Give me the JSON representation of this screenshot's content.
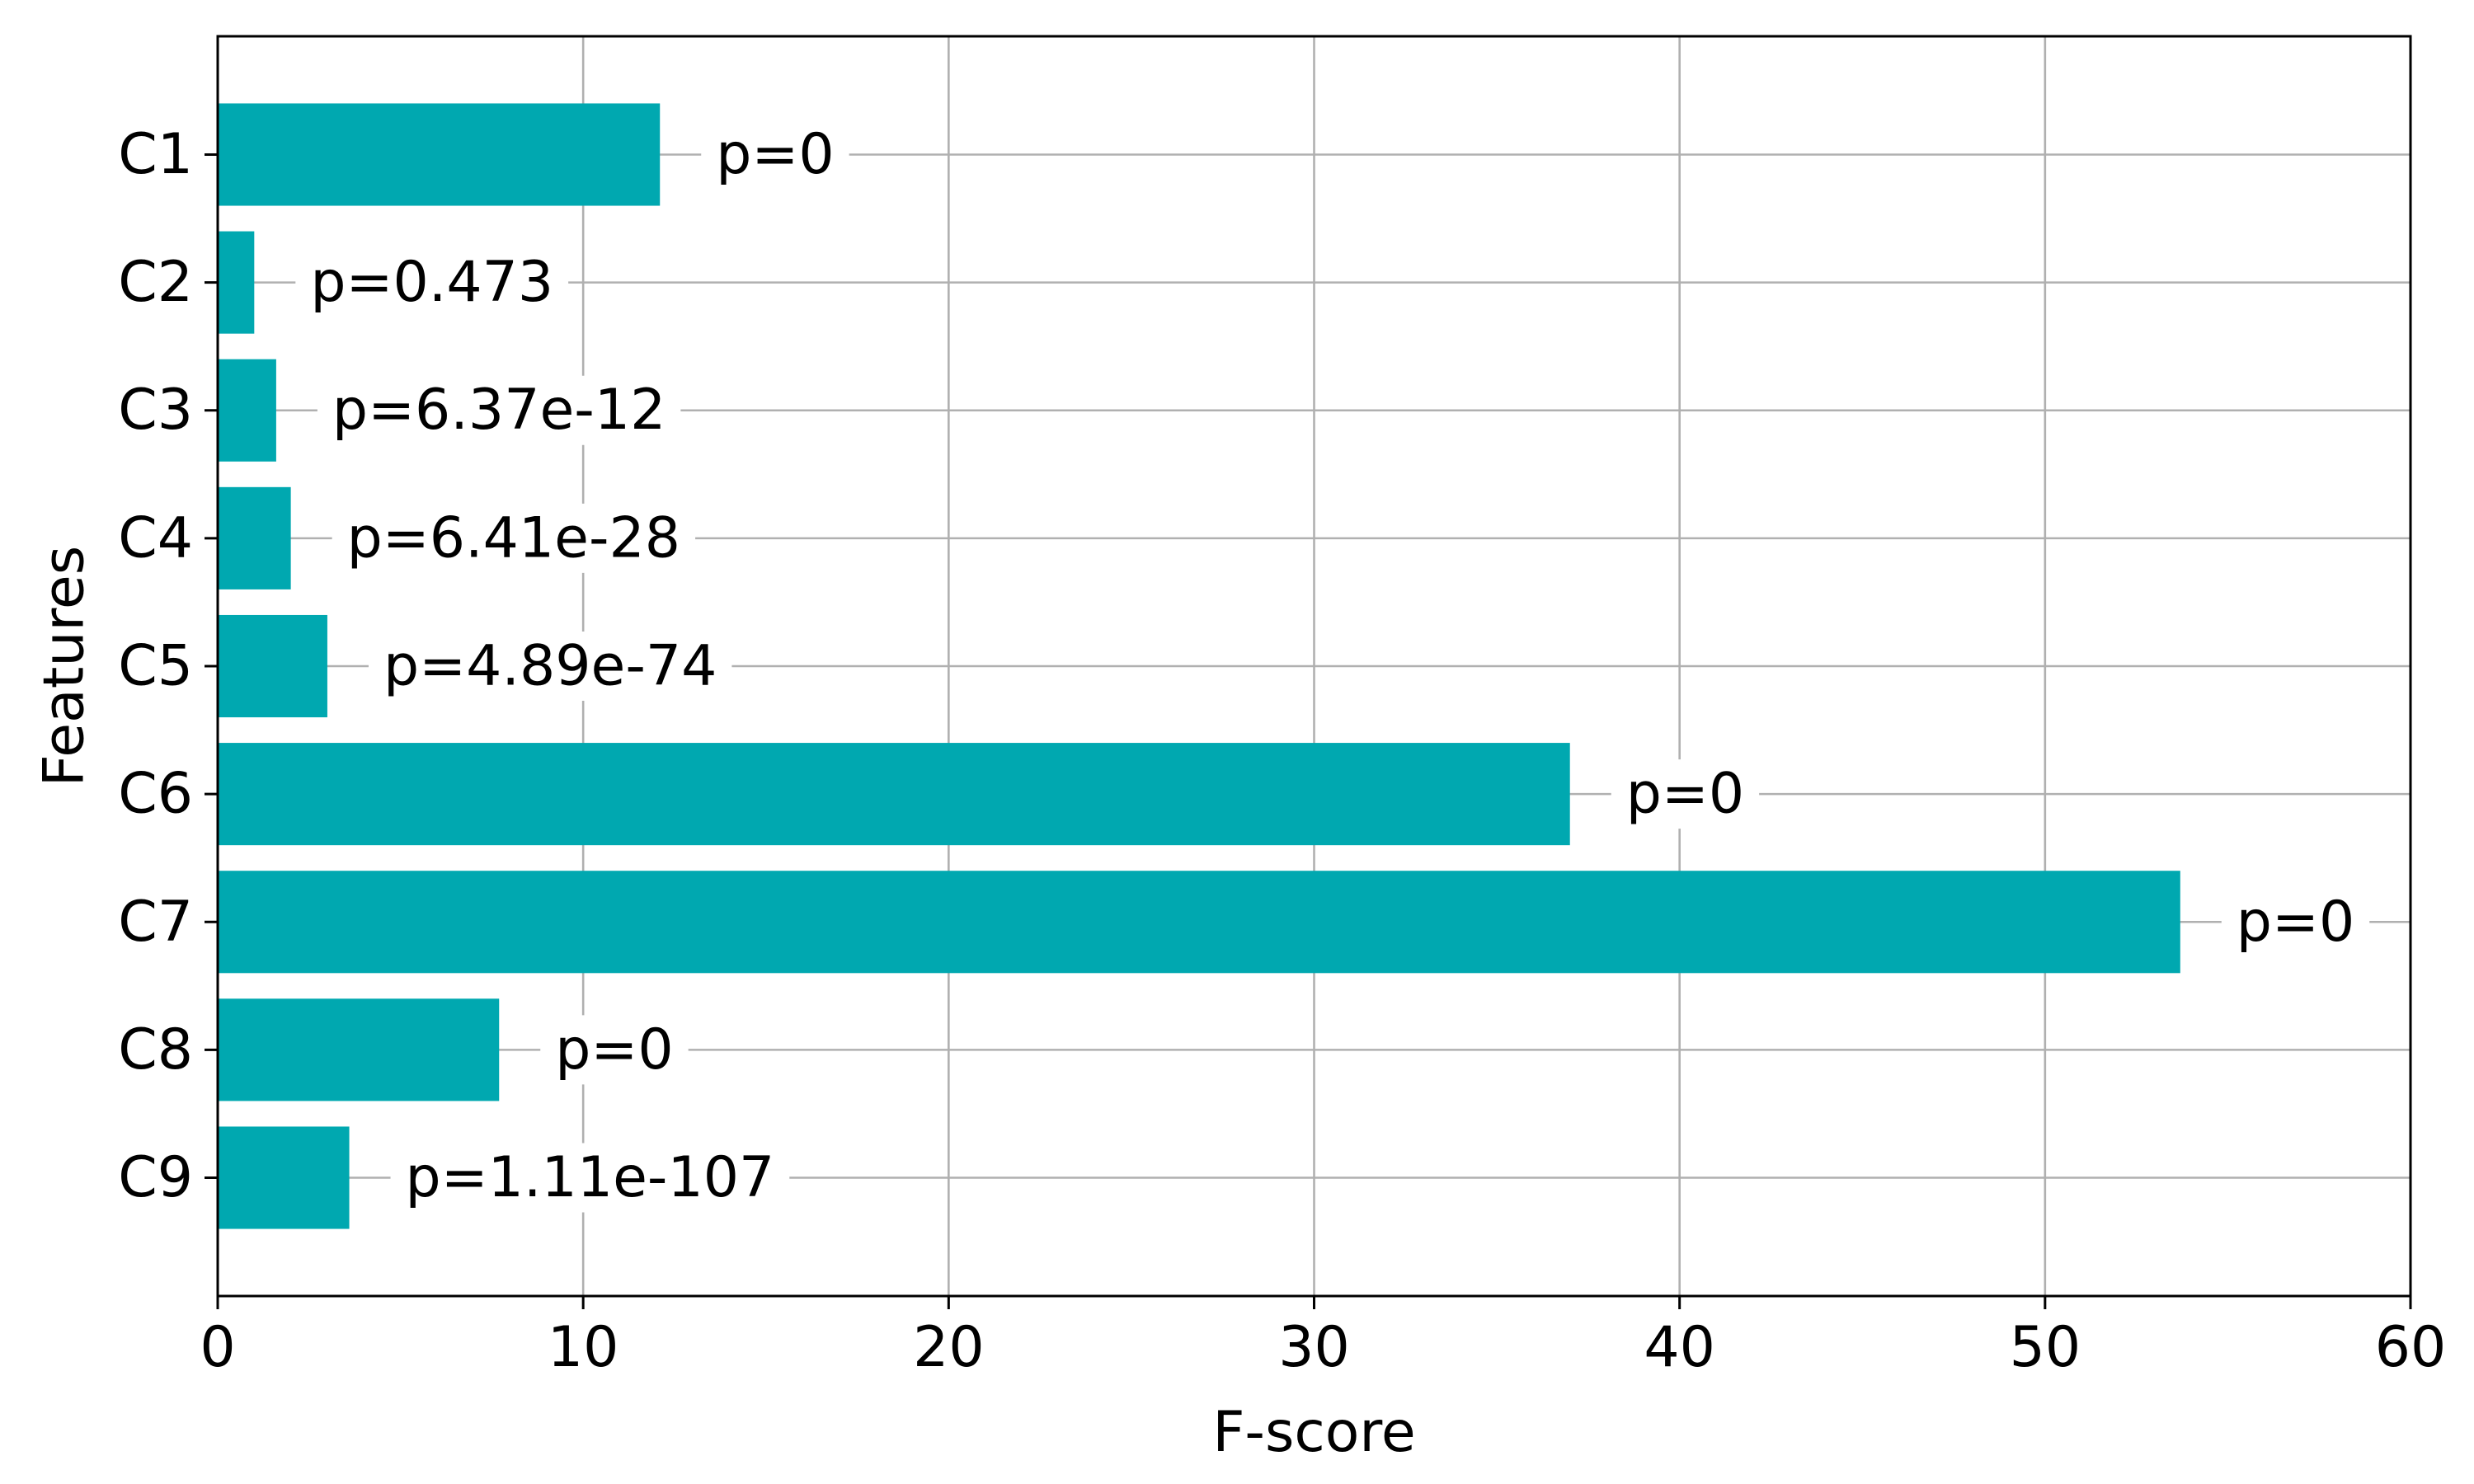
{
  "chart_data": {
    "type": "bar",
    "orientation": "horizontal",
    "title": "",
    "xlabel": "F-score",
    "ylabel": "Features",
    "xlim": [
      0,
      60
    ],
    "x_ticks": [
      0,
      10,
      20,
      30,
      40,
      50,
      60
    ],
    "grid": true,
    "bar_color": "#00a8b0",
    "categories": [
      "C1",
      "C2",
      "C3",
      "C4",
      "C5",
      "C6",
      "C7",
      "C8",
      "C9"
    ],
    "values": [
      12.1,
      1.0,
      1.6,
      2.0,
      3.0,
      37.0,
      53.7,
      7.7,
      3.6
    ],
    "bar_labels": [
      "p=0",
      "p=0.473",
      "p=6.37e-12",
      "p=6.41e-28",
      "p=4.89e-74",
      "p=0",
      "p=0",
      "p=0",
      "p=1.11e-107"
    ]
  }
}
